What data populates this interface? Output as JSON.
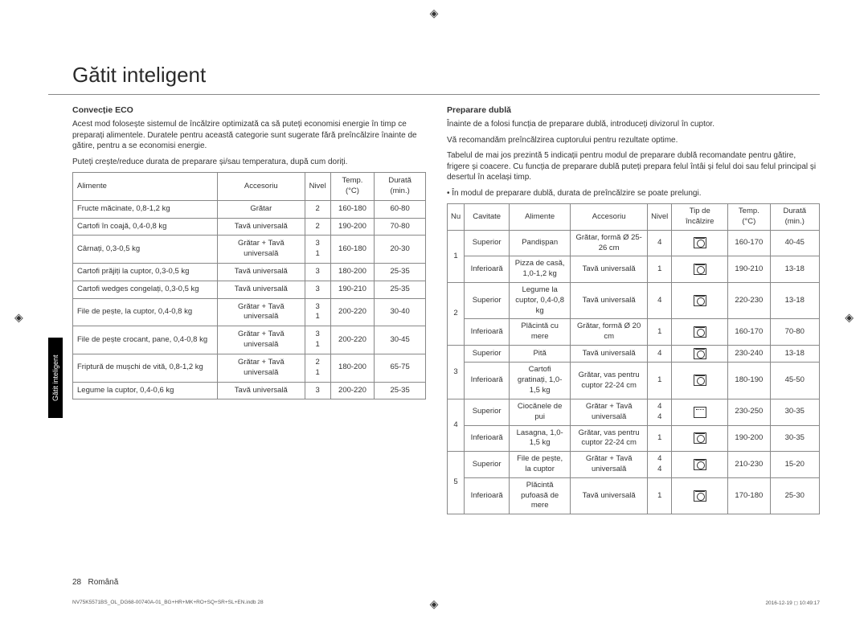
{
  "crop_glyph": "◈",
  "title": "Gătit inteligent",
  "side_tab": "Gătit inteligent",
  "footer": {
    "page": "28",
    "lang": "Română"
  },
  "tiny_footer": {
    "left": "NV75K5571BS_OL_DG68-00740A-01_BG+HR+MK+RO+SQ+SR+SL+EN.indb   28",
    "right": "2016-12-19   ◻ 10:49:17"
  },
  "left": {
    "heading": "Convecție ECO",
    "p1": "Acest mod folosește sistemul de încălzire optimizată ca să puteți economisi energie în timp ce preparați alimentele. Duratele pentru această categorie sunt sugerate fără preîncălzire înainte de gătire, pentru a se economisi energie.",
    "p2": "Puteți crește/reduce durata de preparare și/sau temperatura, după cum doriți.",
    "headers": [
      "Alimente",
      "Accesoriu",
      "Nivel",
      "Temp. (°C)",
      "Durată (min.)"
    ],
    "rows": [
      [
        "Fructe măcinate, 0,8-1,2 kg",
        "Grătar",
        "2",
        "160-180",
        "60-80"
      ],
      [
        "Cartofi în coajă, 0,4-0,8 kg",
        "Tavă universală",
        "2",
        "190-200",
        "70-80"
      ],
      [
        "Cârnați, 0,3-0,5 kg",
        "Grătar + Tavă universală",
        "3\n1",
        "160-180",
        "20-30"
      ],
      [
        "Cartofi prăjiți la cuptor, 0,3-0,5 kg",
        "Tavă universală",
        "3",
        "180-200",
        "25-35"
      ],
      [
        "Cartofi wedges congelați, 0,3-0,5 kg",
        "Tavă universală",
        "3",
        "190-210",
        "25-35"
      ],
      [
        "File de pește, la cuptor, 0,4-0,8 kg",
        "Grătar + Tavă universală",
        "3\n1",
        "200-220",
        "30-40"
      ],
      [
        "File de pește crocant, pane, 0,4-0,8 kg",
        "Grătar + Tavă universală",
        "3\n1",
        "200-220",
        "30-45"
      ],
      [
        "Friptură de mușchi de vită, 0,8-1,2 kg",
        "Grătar + Tavă universală",
        "2\n1",
        "180-200",
        "65-75"
      ],
      [
        "Legume la cuptor, 0,4-0,6 kg",
        "Tavă universală",
        "3",
        "200-220",
        "25-35"
      ]
    ]
  },
  "right": {
    "heading": "Preparare dublă",
    "p1": "Înainte de a folosi funcția de preparare dublă, introduceți divizorul în cuptor.",
    "p2": "Vă recomandăm preîncălzirea cuptorului pentru rezultate optime.",
    "p3": "Tabelul de mai jos prezintă 5 indicații pentru modul de preparare dublă recomandate pentru gătire, frigere și coacere. Cu funcția de preparare dublă puteți prepara felul întâi și felul doi sau felul principal și desertul în același timp.",
    "bullet": "În modul de preparare dublă, durata de preîncălzire se poate prelungi.",
    "headers": [
      "Nu",
      "Cavitate",
      "Alimente",
      "Accesoriu",
      "Nivel",
      "Tip de încălzire",
      "Temp. (°C)",
      "Durată (min.)"
    ],
    "rows": [
      {
        "no": "1",
        "cav": "Superior",
        "alm": "Pandișpan",
        "acc": "Grătar, formă Ø 25-26 cm",
        "niv": "4",
        "ico": "fan",
        "temp": "160-170",
        "dur": "40-45"
      },
      {
        "no": "",
        "cav": "Inferioară",
        "alm": "Pizza de casă, 1,0-1,2 kg",
        "acc": "Tavă universală",
        "niv": "1",
        "ico": "fan",
        "temp": "190-210",
        "dur": "13-18"
      },
      {
        "no": "2",
        "cav": "Superior",
        "alm": "Legume la cuptor, 0,4-0,8 kg",
        "acc": "Tavă universală",
        "niv": "4",
        "ico": "fan",
        "temp": "220-230",
        "dur": "13-18"
      },
      {
        "no": "",
        "cav": "Inferioară",
        "alm": "Plăcintă cu mere",
        "acc": "Grătar, formă Ø 20 cm",
        "niv": "1",
        "ico": "fan",
        "temp": "160-170",
        "dur": "70-80"
      },
      {
        "no": "3",
        "cav": "Superior",
        "alm": "Pită",
        "acc": "Tavă universală",
        "niv": "4",
        "ico": "fan",
        "temp": "230-240",
        "dur": "13-18"
      },
      {
        "no": "",
        "cav": "Inferioară",
        "alm": "Cartofi gratinați, 1,0-1,5 kg",
        "acc": "Grătar, vas pentru cuptor 22-24 cm",
        "niv": "1",
        "ico": "fan",
        "temp": "180-190",
        "dur": "45-50"
      },
      {
        "no": "4",
        "cav": "Superior",
        "alm": "Ciocănele de pui",
        "acc": "Grătar + Tavă universală",
        "niv": "4\n4",
        "ico": "grill",
        "temp": "230-250",
        "dur": "30-35"
      },
      {
        "no": "",
        "cav": "Inferioară",
        "alm": "Lasagna, 1,0-1,5 kg",
        "acc": "Grătar, vas pentru cuptor 22-24 cm",
        "niv": "1",
        "ico": "fan",
        "temp": "190-200",
        "dur": "30-35"
      },
      {
        "no": "5",
        "cav": "Superior",
        "alm": "File de pește, la cuptor",
        "acc": "Grătar + Tavă universală",
        "niv": "4\n4",
        "ico": "fan",
        "temp": "210-230",
        "dur": "15-20"
      },
      {
        "no": "",
        "cav": "Inferioară",
        "alm": "Plăcintă pufoasă de mere",
        "acc": "Tavă universală",
        "niv": "1",
        "ico": "fan",
        "temp": "170-180",
        "dur": "25-30"
      }
    ]
  }
}
